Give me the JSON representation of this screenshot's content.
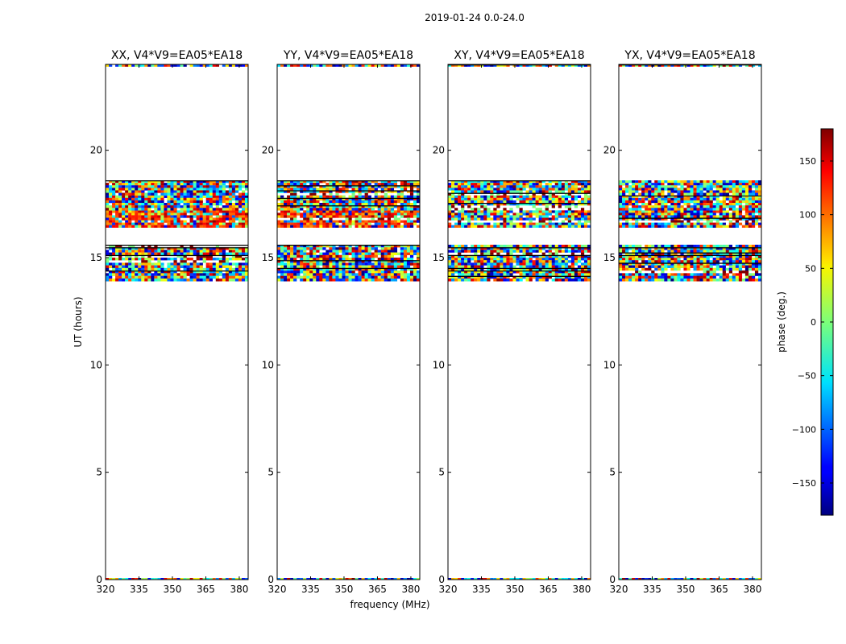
{
  "figure_title": "2019-01-24 0.0-24.0",
  "xlabel": "frequency (MHz)",
  "ylabel": "UT (hours)",
  "colorbar": {
    "label": "phase (deg.)",
    "range": [
      -180,
      180
    ],
    "ticks": [
      150,
      100,
      50,
      0,
      -50,
      -100,
      -150
    ],
    "tick_labels": [
      "150",
      "100",
      "50",
      "0",
      "−50",
      "−100",
      "−150"
    ],
    "colormap": "jet"
  },
  "chart_data": {
    "type": "heatmap",
    "xlim": [
      320,
      384
    ],
    "ylim": [
      0,
      24
    ],
    "x_ticks": [
      320,
      335,
      350,
      365,
      380
    ],
    "x_tick_labels": [
      "320",
      "335",
      "350",
      "365",
      "380"
    ],
    "y_ticks": [
      0,
      5,
      10,
      15,
      20
    ],
    "y_tick_labels": [
      "0",
      "5",
      "10",
      "15",
      "20"
    ],
    "data_bands_hours": [
      [
        13.9,
        14.4
      ],
      [
        14.4,
        15.0
      ],
      [
        15.0,
        15.6
      ],
      [
        16.4,
        17.2
      ],
      [
        17.2,
        17.9
      ],
      [
        17.9,
        18.6
      ],
      [
        23.9,
        24.0
      ]
    ],
    "phase_bias_bands": [
      {
        "panel": 0,
        "band": [
          16.4,
          17.2
        ],
        "bias_deg": 120
      },
      {
        "panel": 1,
        "band": [
          16.4,
          17.2
        ],
        "bias_deg": 120
      },
      {
        "panel": 0,
        "band": [
          15.4,
          15.6
        ],
        "bias_deg": 150
      },
      {
        "panel": 1,
        "band": [
          15.4,
          15.6
        ],
        "bias_deg": 150
      }
    ],
    "panels": [
      {
        "title": "XX, V4*V9=EA05*EA18",
        "correlation": "XX"
      },
      {
        "title": "YY, V4*V9=EA05*EA18",
        "correlation": "YY"
      },
      {
        "title": "XY, V4*V9=EA05*EA18",
        "correlation": "XY"
      },
      {
        "title": "YX, V4*V9=EA05*EA18",
        "correlation": "YX"
      }
    ]
  }
}
